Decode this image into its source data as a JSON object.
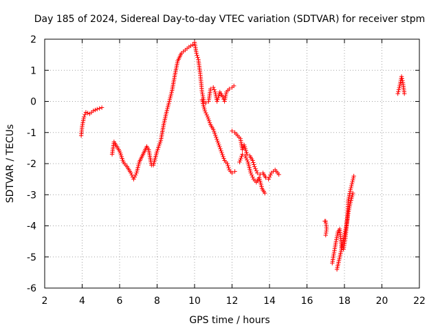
{
  "chart_data": {
    "type": "scatter",
    "title": "Day 185 of 2024, Sidereal Day-to-day VTEC variation (SDTVAR) for receiver stpm",
    "xlabel": "GPS time / hours",
    "ylabel": "SDTVAR / TECUs",
    "xlim": [
      2,
      22
    ],
    "ylim": [
      -6,
      2
    ],
    "xticks": [
      2,
      4,
      6,
      8,
      10,
      12,
      14,
      16,
      18,
      20,
      22
    ],
    "yticks": [
      -6,
      -5,
      -4,
      -3,
      -2,
      -1,
      0,
      1,
      2
    ],
    "grid": true,
    "marker": "plus",
    "colors": {
      "series": "#ff0000",
      "grid": "#a0a0a0",
      "axis": "#000000"
    },
    "series": [
      {
        "name": "segment-1",
        "points": [
          [
            3.95,
            -1.1
          ],
          [
            4.0,
            -0.8
          ],
          [
            4.1,
            -0.5
          ],
          [
            4.2,
            -0.35
          ],
          [
            4.4,
            -0.4
          ],
          [
            4.6,
            -0.3
          ],
          [
            4.8,
            -0.25
          ],
          [
            5.05,
            -0.2
          ]
        ]
      },
      {
        "name": "segment-2",
        "points": [
          [
            5.6,
            -1.7
          ],
          [
            5.7,
            -1.3
          ],
          [
            5.85,
            -1.45
          ],
          [
            6.0,
            -1.6
          ],
          [
            6.2,
            -1.95
          ],
          [
            6.4,
            -2.1
          ],
          [
            6.6,
            -2.3
          ],
          [
            6.75,
            -2.5
          ],
          [
            6.9,
            -2.3
          ],
          [
            7.05,
            -1.95
          ],
          [
            7.25,
            -1.7
          ],
          [
            7.45,
            -1.45
          ],
          [
            7.55,
            -1.55
          ],
          [
            7.7,
            -2.05
          ],
          [
            7.8,
            -2.05
          ],
          [
            8.0,
            -1.6
          ],
          [
            8.2,
            -1.25
          ],
          [
            8.35,
            -0.75
          ],
          [
            8.5,
            -0.35
          ],
          [
            8.65,
            0.0
          ],
          [
            8.8,
            0.35
          ],
          [
            8.95,
            0.85
          ],
          [
            9.1,
            1.3
          ],
          [
            9.3,
            1.55
          ],
          [
            9.5,
            1.65
          ],
          [
            9.7,
            1.75
          ],
          [
            9.9,
            1.82
          ],
          [
            10.0,
            1.9
          ],
          [
            10.1,
            1.55
          ],
          [
            10.2,
            1.35
          ],
          [
            10.3,
            0.9
          ],
          [
            10.4,
            0.3
          ],
          [
            10.5,
            0.0
          ],
          [
            10.6,
            -0.05
          ],
          [
            10.75,
            0.0
          ],
          [
            10.85,
            0.4
          ],
          [
            11.0,
            0.45
          ],
          [
            11.1,
            0.3
          ],
          [
            11.2,
            0.0
          ],
          [
            11.35,
            0.3
          ],
          [
            11.5,
            0.15
          ],
          [
            11.6,
            0.0
          ],
          [
            11.7,
            0.3
          ],
          [
            11.85,
            0.4
          ],
          [
            12.0,
            0.45
          ],
          [
            12.1,
            0.5
          ]
        ]
      },
      {
        "name": "segment-3",
        "points": [
          [
            10.4,
            0.05
          ],
          [
            10.55,
            -0.3
          ],
          [
            10.7,
            -0.5
          ],
          [
            10.85,
            -0.75
          ],
          [
            11.0,
            -0.9
          ],
          [
            11.15,
            -1.15
          ],
          [
            11.3,
            -1.4
          ],
          [
            11.45,
            -1.65
          ],
          [
            11.6,
            -1.9
          ],
          [
            11.75,
            -2.0
          ],
          [
            11.85,
            -2.2
          ],
          [
            12.0,
            -2.3
          ],
          [
            12.15,
            -2.25
          ]
        ]
      },
      {
        "name": "segment-4",
        "points": [
          [
            12.0,
            -0.95
          ],
          [
            12.15,
            -1.0
          ],
          [
            12.3,
            -1.1
          ],
          [
            12.45,
            -1.2
          ],
          [
            12.55,
            -1.55
          ],
          [
            12.65,
            -1.4
          ],
          [
            12.8,
            -1.7
          ],
          [
            12.95,
            -1.75
          ],
          [
            13.1,
            -1.9
          ],
          [
            13.2,
            -2.1
          ],
          [
            13.35,
            -2.3
          ],
          [
            13.5,
            -2.35
          ],
          [
            13.65,
            -2.3
          ],
          [
            13.8,
            -2.45
          ],
          [
            13.95,
            -2.5
          ],
          [
            14.1,
            -2.3
          ],
          [
            14.3,
            -2.2
          ],
          [
            14.5,
            -2.35
          ]
        ]
      },
      {
        "name": "segment-5",
        "points": [
          [
            12.4,
            -1.95
          ],
          [
            12.55,
            -1.7
          ],
          [
            12.7,
            -1.75
          ],
          [
            12.85,
            -1.95
          ],
          [
            13.0,
            -2.3
          ],
          [
            13.15,
            -2.5
          ],
          [
            13.3,
            -2.6
          ],
          [
            13.45,
            -2.45
          ],
          [
            13.6,
            -2.8
          ],
          [
            13.75,
            -2.95
          ]
        ]
      },
      {
        "name": "segment-6",
        "points": [
          [
            16.95,
            -3.85
          ],
          [
            17.0,
            -3.85
          ],
          [
            17.05,
            -4.1
          ],
          [
            17.0,
            -4.3
          ]
        ]
      },
      {
        "name": "segment-7",
        "points": [
          [
            17.35,
            -5.2
          ],
          [
            17.45,
            -4.85
          ],
          [
            17.55,
            -4.5
          ],
          [
            17.65,
            -4.2
          ],
          [
            17.75,
            -4.1
          ],
          [
            17.85,
            -4.7
          ],
          [
            17.95,
            -4.75
          ],
          [
            18.05,
            -4.4
          ],
          [
            18.15,
            -3.8
          ],
          [
            18.2,
            -3.2
          ],
          [
            18.3,
            -2.9
          ],
          [
            18.4,
            -2.65
          ],
          [
            18.5,
            -2.4
          ]
        ]
      },
      {
        "name": "segment-8",
        "points": [
          [
            17.6,
            -5.4
          ],
          [
            17.75,
            -5.0
          ],
          [
            17.9,
            -4.6
          ],
          [
            18.0,
            -4.3
          ],
          [
            18.1,
            -4.0
          ],
          [
            18.2,
            -3.6
          ],
          [
            18.3,
            -3.3
          ],
          [
            18.45,
            -2.95
          ]
        ]
      },
      {
        "name": "segment-9",
        "points": [
          [
            20.85,
            0.25
          ],
          [
            20.95,
            0.5
          ],
          [
            21.05,
            0.8
          ],
          [
            21.12,
            0.6
          ],
          [
            21.2,
            0.25
          ]
        ]
      }
    ]
  }
}
